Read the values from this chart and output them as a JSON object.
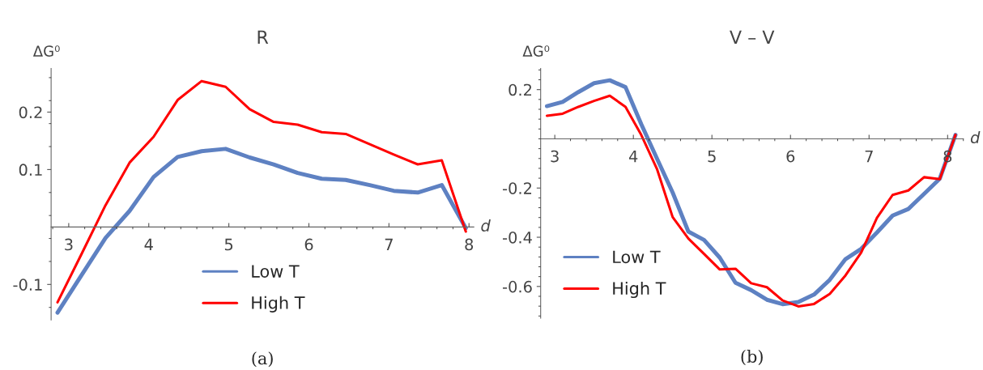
{
  "chart_data": [
    {
      "type": "line",
      "title": "R",
      "xlabel": "d",
      "ylabel": "ΔG⁰",
      "annotations": [
        "(a)"
      ],
      "legend": "bottom",
      "x": [
        2.86,
        3.16,
        3.46,
        3.76,
        4.06,
        4.36,
        4.66,
        4.96,
        5.26,
        5.56,
        5.86,
        6.16,
        6.46,
        6.76,
        7.06,
        7.36,
        7.66,
        7.96
      ],
      "series": [
        {
          "name": "Low T",
          "color": "#5e81c2",
          "values": [
            -0.149,
            -0.084,
            -0.019,
            0.028,
            0.087,
            0.122,
            0.132,
            0.136,
            0.121,
            0.109,
            0.094,
            0.084,
            0.082,
            0.073,
            0.063,
            0.06,
            0.073,
            -0.002
          ]
        },
        {
          "name": "High T",
          "color": "#ff0000",
          "values": [
            -0.131,
            -0.047,
            0.038,
            0.112,
            0.157,
            0.221,
            0.254,
            0.244,
            0.205,
            0.183,
            0.178,
            0.165,
            0.162,
            0.144,
            0.126,
            0.109,
            0.116,
            -0.008
          ]
        }
      ],
      "xlim": [
        2.78,
        8.06
      ],
      "ylim": [
        -0.162,
        0.276
      ],
      "xticks": [
        3,
        4,
        5,
        6,
        7,
        8
      ],
      "yticks": [
        -0.1,
        0.1,
        0.2
      ]
    },
    {
      "type": "line",
      "title": "V – V",
      "xlabel": "d",
      "ylabel": "ΔG⁰",
      "annotations": [
        "(b)"
      ],
      "legend": "bottom left",
      "x": [
        2.9,
        3.1,
        3.3,
        3.5,
        3.7,
        3.9,
        4.1,
        4.3,
        4.5,
        4.7,
        4.9,
        5.1,
        5.3,
        5.5,
        5.7,
        5.9,
        6.1,
        6.3,
        6.5,
        6.7,
        6.9,
        7.1,
        7.3,
        7.5,
        7.7,
        7.9,
        8.1
      ],
      "series": [
        {
          "name": "Low T",
          "color": "#5e81c2",
          "values": [
            0.133,
            0.15,
            0.19,
            0.226,
            0.238,
            0.21,
            0.06,
            -0.08,
            -0.218,
            -0.377,
            -0.411,
            -0.483,
            -0.585,
            -0.615,
            -0.654,
            -0.672,
            -0.663,
            -0.633,
            -0.573,
            -0.489,
            -0.447,
            -0.381,
            -0.312,
            -0.285,
            -0.224,
            -0.162,
            0.016
          ]
        },
        {
          "name": "High T",
          "color": "#ff0000",
          "values": [
            0.094,
            0.102,
            0.13,
            0.154,
            0.175,
            0.13,
            0.016,
            -0.122,
            -0.318,
            -0.405,
            -0.468,
            -0.531,
            -0.528,
            -0.587,
            -0.603,
            -0.657,
            -0.681,
            -0.671,
            -0.63,
            -0.555,
            -0.462,
            -0.321,
            -0.228,
            -0.21,
            -0.156,
            -0.164,
            0.016
          ]
        }
      ],
      "xlim": [
        2.82,
        8.2
      ],
      "ylim": [
        -0.729,
        0.286
      ],
      "xticks": [
        3,
        4,
        5,
        6,
        7,
        8
      ],
      "yticks": [
        -0.6,
        -0.4,
        -0.2,
        0.2
      ]
    }
  ]
}
